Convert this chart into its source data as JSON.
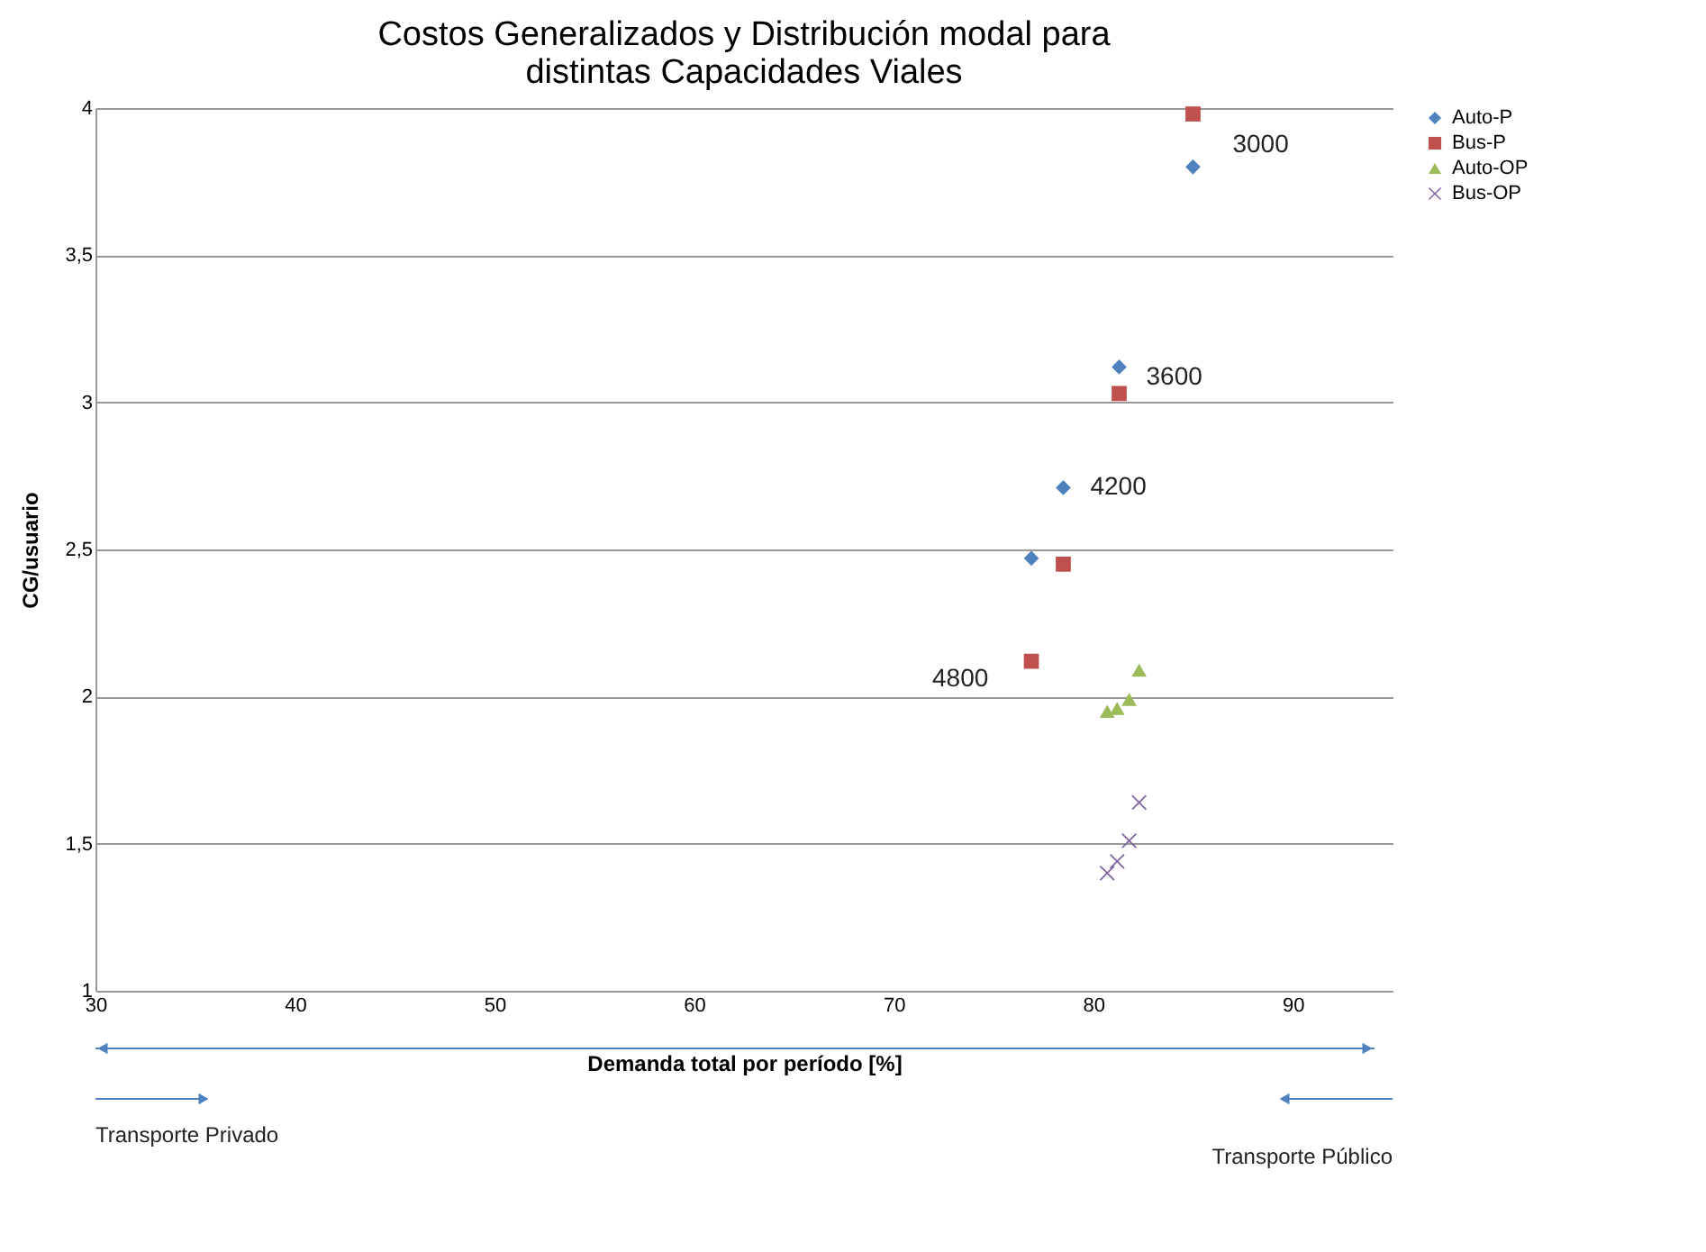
{
  "chart_data": {
    "type": "scatter",
    "title": "Costos Generalizados y Distribución modal para\ndistintas Capacidades Viales",
    "xlabel": "Demanda total por período [%]",
    "ylabel": "CG/usuario",
    "xlim": [
      30,
      95
    ],
    "xticks": [
      30,
      40,
      50,
      60,
      70,
      80,
      90
    ],
    "ylim": [
      1,
      4
    ],
    "yticks": [
      1,
      {
        "value": 1.5,
        "label": "1,5"
      },
      2,
      {
        "value": 2.5,
        "label": "2,5"
      },
      3,
      {
        "value": 3.5,
        "label": "3,5"
      },
      4
    ],
    "grid": "y",
    "legend": "right",
    "series": [
      {
        "name": "Auto-P",
        "color": "#4f81bd",
        "marker": "diamond",
        "x": [
          85.0,
          81.3,
          78.5,
          76.9
        ],
        "values": [
          3.8,
          3.12,
          2.71,
          2.47
        ]
      },
      {
        "name": "Bus-P",
        "color": "#c0504d",
        "marker": "square",
        "x": [
          85.0,
          81.3,
          78.5,
          76.9
        ],
        "values": [
          3.98,
          3.03,
          2.45,
          2.12
        ]
      },
      {
        "name": "Auto-OP",
        "color": "#9bbb59",
        "marker": "triangle",
        "x": [
          80.7,
          81.2,
          81.8,
          82.3
        ],
        "values": [
          1.95,
          1.96,
          1.99,
          2.09
        ]
      },
      {
        "name": "Bus-OP",
        "color": "#8064a2",
        "marker": "cross",
        "x": [
          80.7,
          81.2,
          81.8,
          82.3
        ],
        "values": [
          1.4,
          1.44,
          1.51,
          1.64
        ]
      }
    ],
    "annotations": [
      {
        "text": "3000",
        "x": 85.0,
        "y": 3.8
      },
      {
        "text": "3600",
        "x": 81.3,
        "y": 3.12
      },
      {
        "text": "4200",
        "x": 78.5,
        "y": 2.71
      },
      {
        "text": "4800",
        "x": 76.9,
        "y": 2.12
      },
      "Transporte Privado",
      "Transporte Público"
    ]
  }
}
